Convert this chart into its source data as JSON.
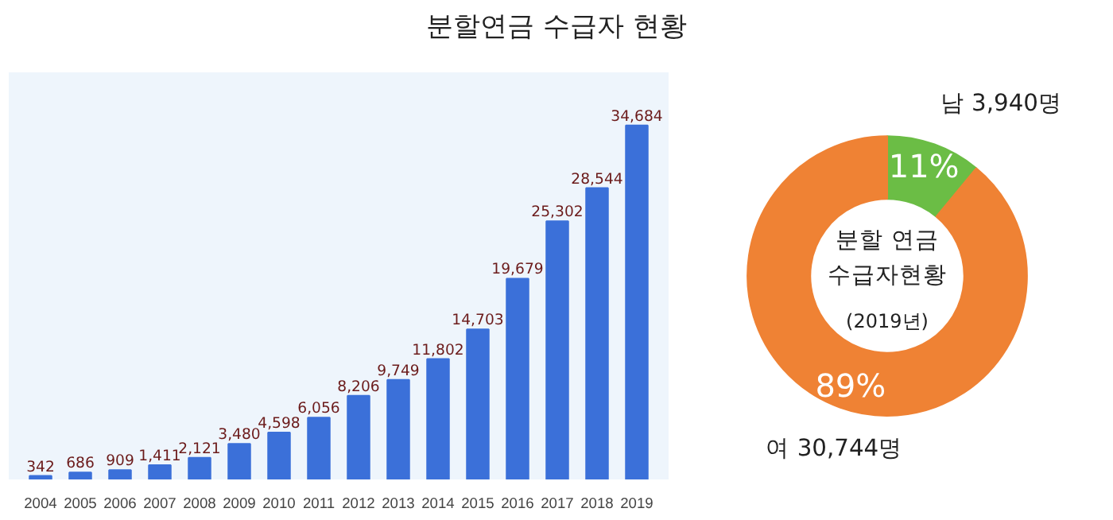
{
  "chart_data": [
    {
      "type": "bar",
      "title": "분할연금 수급자 현황",
      "categories": [
        "2004",
        "2005",
        "2006",
        "2007",
        "2008",
        "2009",
        "2010",
        "2011",
        "2012",
        "2013",
        "2014",
        "2015",
        "2016",
        "2017",
        "2018",
        "2019"
      ],
      "values": [
        342,
        686,
        909,
        1411,
        2121,
        3480,
        4598,
        6056,
        8206,
        9749,
        11802,
        14703,
        19679,
        25302,
        28544,
        34684
      ],
      "color": "#3b70d9",
      "value_labels": [
        "342",
        "686",
        "909",
        "1,411",
        "2,121",
        "3,480",
        "4,598",
        "6,056",
        "8,206",
        "9,749",
        "11,802",
        "14,703",
        "19,679",
        "25,302",
        "28,544",
        "34,684"
      ],
      "grid": false
    },
    {
      "type": "donut",
      "title": "분할 연금\n수급자현황",
      "subtitle": "(2019년)",
      "categories": [
        "남 3,940명",
        "여 30,744명"
      ],
      "values": [
        11,
        89
      ],
      "value_labels": [
        "11%",
        "89%"
      ],
      "colors": [
        "#6bbd45",
        "#ef8234"
      ]
    }
  ]
}
